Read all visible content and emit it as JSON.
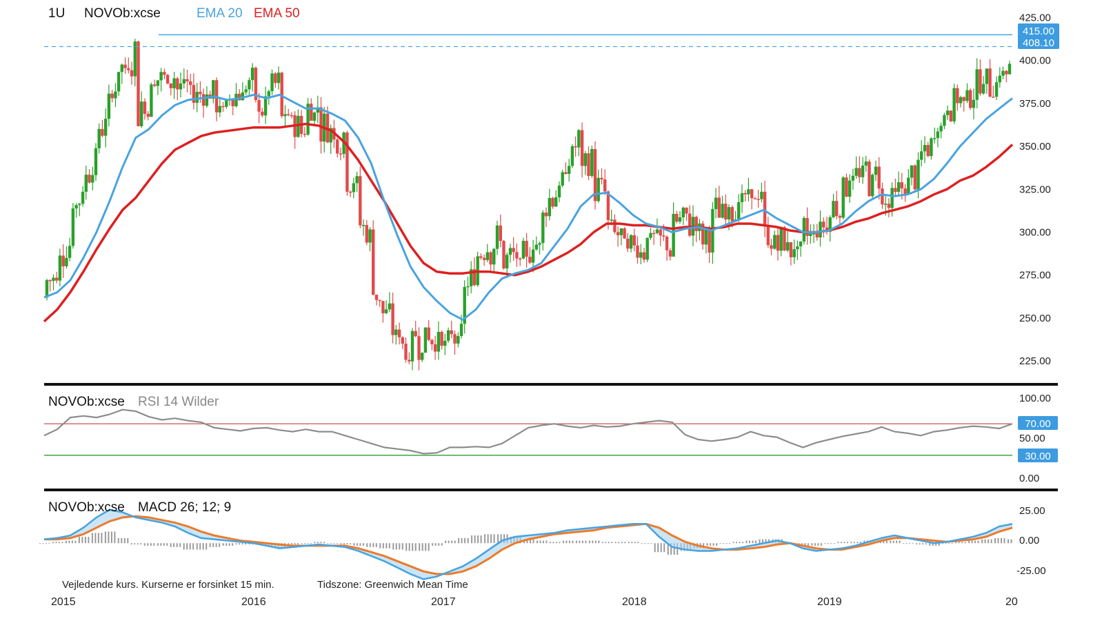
{
  "header": {
    "interval": "1U",
    "symbol": "NOVOb:xcse",
    "ema20_label": "EMA 20",
    "ema50_label": "EMA 50"
  },
  "colors": {
    "up": "#2aa02a",
    "down": "#e24a4a",
    "ema20": "#4aa3df",
    "ema50": "#dd2020",
    "rsi": "#8c8c8c",
    "rsi_upper": "#d06060",
    "rsi_lower": "#2aa02a",
    "macd": "#4aa3df",
    "signal": "#ec7a2a",
    "hist": "#9a9a9a",
    "tag_bg": "#3d9be0"
  },
  "price_axis": {
    "ticks": [
      "425.00",
      "400.00",
      "375.00",
      "350.00",
      "325.00",
      "300.00",
      "275.00",
      "250.00",
      "225.00"
    ]
  },
  "price_tags": {
    "high": "415.00",
    "last": "408.10"
  },
  "rsi_panel": {
    "symbol": "NOVOb:xcse",
    "label": "RSI 14 Wilder",
    "ticks": [
      "100.00",
      "50.00",
      "0.00"
    ],
    "tag_upper": "70.00",
    "tag_lower": "30.00"
  },
  "macd_panel": {
    "symbol": "NOVOb:xcse",
    "label": "MACD 26; 12; 9",
    "ticks": [
      "25.00",
      "0.00",
      "-25.00"
    ]
  },
  "footer": {
    "note": "Vejledende kurs. Kurserne er forsinket 15 min.",
    "timezone": "Tidszone: Greenwich Mean Time"
  },
  "x_axis": {
    "years": [
      "2015",
      "2016",
      "2017",
      "2018",
      "2019",
      "20"
    ]
  },
  "chart_data": [
    {
      "type": "candlestick",
      "title": "NOVOb:xcse",
      "series": [
        {
          "name": "EMA 20",
          "values": [
            262,
            265,
            272,
            285,
            300,
            318,
            338,
            355,
            360,
            368,
            374,
            377,
            378,
            379,
            377,
            378,
            380,
            378,
            380,
            376,
            372,
            372,
            369,
            365,
            355,
            340,
            318,
            298,
            280,
            268,
            260,
            253,
            249,
            255,
            265,
            273,
            276,
            278,
            282,
            292,
            302,
            315,
            322,
            323,
            317,
            310,
            305,
            303,
            300,
            302,
            303,
            301,
            304,
            307,
            310,
            313,
            308,
            304,
            300,
            300,
            301,
            305,
            312,
            318,
            322,
            321,
            322,
            325,
            331,
            340,
            350,
            358,
            366,
            372,
            378
          ]
        },
        {
          "name": "EMA 50",
          "values": [
            248,
            255,
            265,
            277,
            290,
            302,
            313,
            320,
            330,
            340,
            348,
            352,
            356,
            358,
            359,
            360,
            361,
            361,
            361,
            362,
            363,
            362,
            359,
            352,
            342,
            330,
            318,
            305,
            292,
            282,
            277,
            276,
            276,
            277,
            277,
            276,
            275,
            277,
            280,
            284,
            288,
            293,
            300,
            305,
            305,
            304,
            304,
            303,
            302,
            303,
            303,
            302,
            303,
            305,
            305,
            304,
            303,
            301,
            300,
            300,
            301,
            303,
            306,
            308,
            311,
            313,
            315,
            318,
            322,
            325,
            330,
            333,
            338,
            344,
            351
          ]
        }
      ],
      "ylim": [
        215,
        428
      ],
      "high_level": 415.0,
      "last_price": 408.1
    },
    {
      "type": "line",
      "title": "RSI 14 Wilder",
      "series": [
        {
          "name": "RSI",
          "values": [
            55,
            63,
            78,
            80,
            78,
            82,
            88,
            86,
            79,
            75,
            77,
            74,
            72,
            65,
            63,
            61,
            64,
            65,
            62,
            60,
            63,
            60,
            60,
            55,
            50,
            45,
            40,
            38,
            36,
            32,
            33,
            40,
            40,
            41,
            40,
            45,
            55,
            65,
            68,
            70,
            67,
            65,
            68,
            66,
            67,
            70,
            72,
            74,
            72,
            56,
            50,
            48,
            50,
            53,
            60,
            55,
            53,
            46,
            40,
            46,
            50,
            54,
            57,
            60,
            66,
            60,
            58,
            55,
            60,
            62,
            65,
            67,
            66,
            64,
            70
          ]
        }
      ],
      "ylim": [
        0,
        100
      ],
      "levels": [
        70,
        30
      ]
    },
    {
      "type": "line",
      "title": "MACD 26; 12; 9",
      "series": [
        {
          "name": "MACD",
          "values": [
            3,
            4,
            6,
            12,
            20,
            26,
            24,
            20,
            18,
            16,
            13,
            8,
            4,
            3,
            2,
            1,
            0,
            -2,
            -4,
            -3,
            -2,
            -1,
            -2,
            -3,
            -6,
            -10,
            -14,
            -19,
            -24,
            -28,
            -26,
            -22,
            -18,
            -12,
            -5,
            2,
            5,
            6,
            7,
            8,
            10,
            11,
            12,
            13,
            14,
            15,
            15,
            5,
            -3,
            -5,
            -6,
            -6,
            -5,
            -4,
            -2,
            0,
            2,
            0,
            -4,
            -6,
            -5,
            -4,
            -2,
            1,
            4,
            6,
            4,
            2,
            0,
            1,
            3,
            5,
            8,
            13,
            15
          ]
        },
        {
          "name": "Signal",
          "values": [
            3,
            3,
            4,
            7,
            12,
            17,
            20,
            21,
            20,
            18,
            16,
            13,
            9,
            6,
            4,
            2,
            1,
            0,
            -1,
            -2,
            -2,
            -2,
            -2,
            -2,
            -4,
            -7,
            -10,
            -14,
            -18,
            -22,
            -24,
            -24,
            -22,
            -18,
            -12,
            -5,
            0,
            3,
            5,
            7,
            8,
            9,
            10,
            12,
            13,
            14,
            15,
            12,
            6,
            1,
            -2,
            -4,
            -5,
            -5,
            -4,
            -3,
            -1,
            0,
            -2,
            -4,
            -5,
            -5,
            -3,
            -1,
            2,
            4,
            4,
            3,
            2,
            1,
            2,
            3,
            5,
            9,
            12
          ]
        },
        {
          "name": "Histogram",
          "values": [
            0,
            1,
            2,
            5,
            8,
            9,
            4,
            -1,
            -2,
            -2,
            -3,
            -5,
            -5,
            -3,
            -2,
            -1,
            -1,
            -2,
            -3,
            -1,
            0,
            1,
            0,
            -1,
            -2,
            -3,
            -4,
            -5,
            -6,
            -6,
            -2,
            2,
            4,
            6,
            7,
            7,
            5,
            3,
            2,
            1,
            2,
            2,
            2,
            1,
            1,
            1,
            0,
            -7,
            -9,
            -6,
            -4,
            -2,
            0,
            1,
            2,
            3,
            3,
            0,
            -2,
            -2,
            0,
            1,
            1,
            2,
            2,
            2,
            0,
            -1,
            -2,
            0,
            1,
            2,
            3,
            4,
            3
          ]
        }
      ],
      "ylim": [
        -38,
        35
      ]
    }
  ]
}
